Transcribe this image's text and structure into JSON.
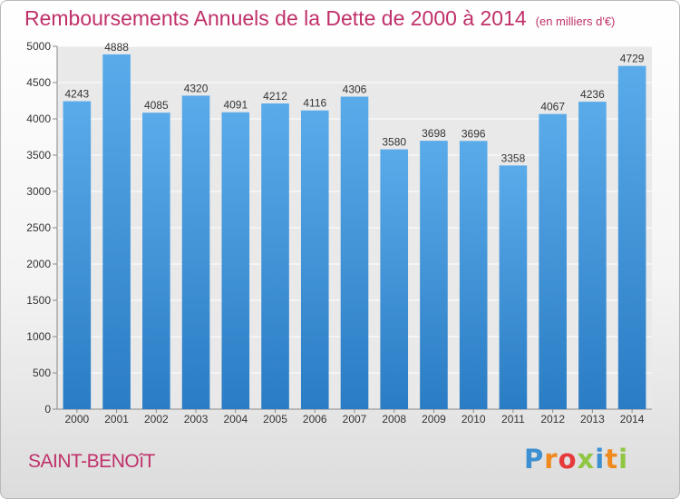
{
  "chart_data": {
    "type": "bar",
    "title": "Remboursements Annuels de la Dette de 2000 à 2014",
    "subtitle": "(en milliers d'€)",
    "categories": [
      "2000",
      "2001",
      "2002",
      "2003",
      "2004",
      "2005",
      "2006",
      "2007",
      "2008",
      "2009",
      "2010",
      "2011",
      "2012",
      "2013",
      "2014"
    ],
    "values": [
      4243,
      4888,
      4085,
      4320,
      4091,
      4212,
      4116,
      4306,
      3580,
      3698,
      3696,
      3358,
      4067,
      4236,
      4729
    ],
    "yticks": [
      0,
      500,
      1000,
      1500,
      2000,
      2500,
      3000,
      3500,
      4000,
      4500,
      5000
    ],
    "ylim": [
      0,
      5000
    ],
    "xlabel": "",
    "ylabel": "",
    "grid": true,
    "bar_color": "#3a8fd8"
  },
  "footer": {
    "commune": "SAINT-BENOîT",
    "logo": {
      "letters": [
        "P",
        "r",
        "o",
        "x",
        "i",
        "t",
        "i"
      ],
      "colors": [
        "#3c8fd1",
        "#f08a1e",
        "#e63a3a",
        "#8fc642",
        "#3c8fd1",
        "#f08a1e",
        "#8fc642"
      ]
    }
  }
}
